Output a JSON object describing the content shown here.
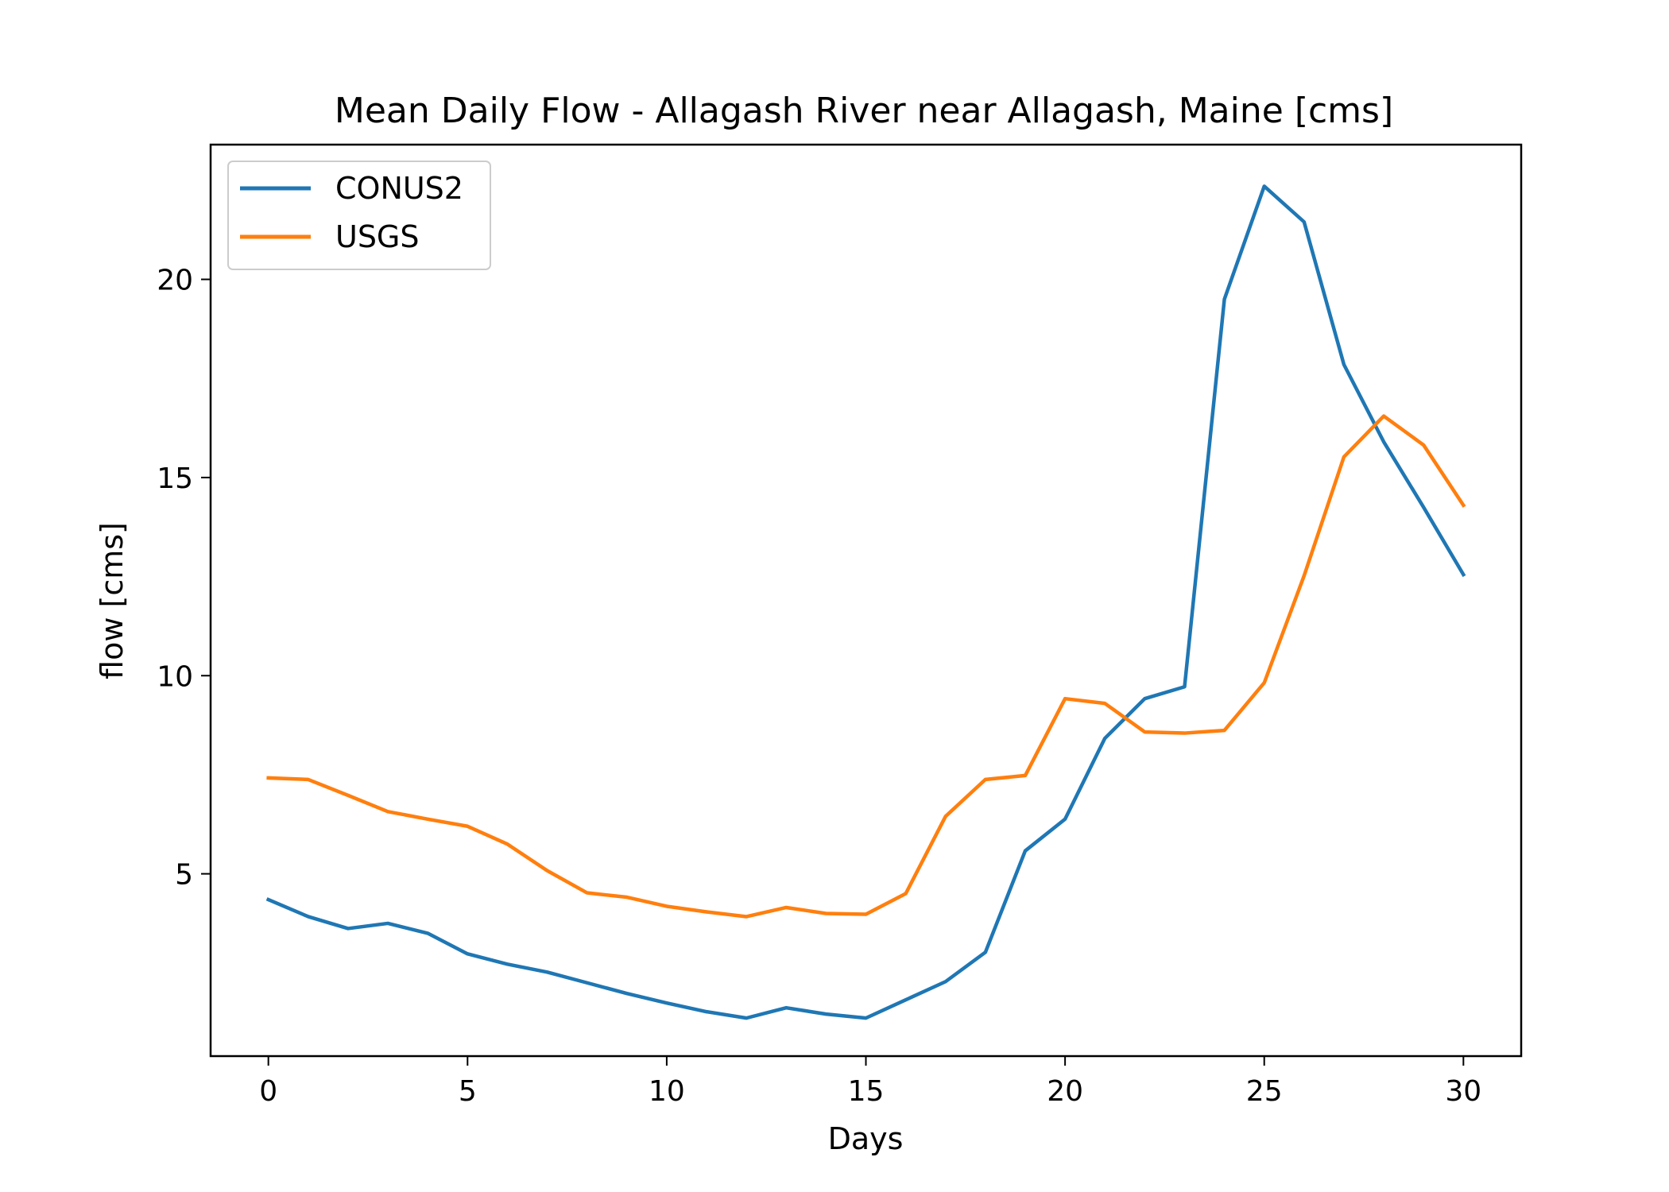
{
  "chart_data": {
    "type": "line",
    "title": "Mean Daily Flow - Allagash River near Allagash, Maine [cms]",
    "xlabel": "Days",
    "ylabel": "flow [cms]",
    "xlim": [
      -1.45,
      31.45
    ],
    "ylim": [
      0.4,
      23.4
    ],
    "xticks": [
      0,
      5,
      10,
      15,
      20,
      25,
      30
    ],
    "yticks": [
      5,
      10,
      15,
      20
    ],
    "grid": false,
    "legend": "top-left",
    "x": [
      0,
      1,
      2,
      3,
      4,
      5,
      6,
      7,
      8,
      9,
      10,
      11,
      12,
      13,
      14,
      15,
      16,
      17,
      18,
      19,
      20,
      21,
      22,
      23,
      24,
      25,
      26,
      27,
      28,
      29,
      30
    ],
    "series": [
      {
        "name": "CONUS2",
        "color": "#1f77b4",
        "values": [
          4.35,
          3.92,
          3.62,
          3.75,
          3.5,
          2.98,
          2.72,
          2.52,
          2.25,
          1.98,
          1.74,
          1.52,
          1.36,
          1.62,
          1.46,
          1.36,
          1.82,
          2.28,
          3.02,
          5.58,
          6.38,
          8.42,
          9.42,
          9.72,
          19.5,
          22.35,
          21.45,
          17.85,
          15.9,
          14.25,
          12.55
        ]
      },
      {
        "name": "USGS",
        "color": "#ff7f0e",
        "values": [
          7.42,
          7.38,
          6.98,
          6.57,
          6.38,
          6.2,
          5.75,
          5.08,
          4.52,
          4.41,
          4.18,
          4.04,
          3.92,
          4.15,
          4.0,
          3.98,
          4.5,
          6.45,
          7.38,
          7.48,
          9.42,
          9.3,
          8.58,
          8.55,
          8.62,
          9.82,
          12.52,
          15.52,
          16.55,
          15.82,
          14.3
        ]
      }
    ]
  }
}
